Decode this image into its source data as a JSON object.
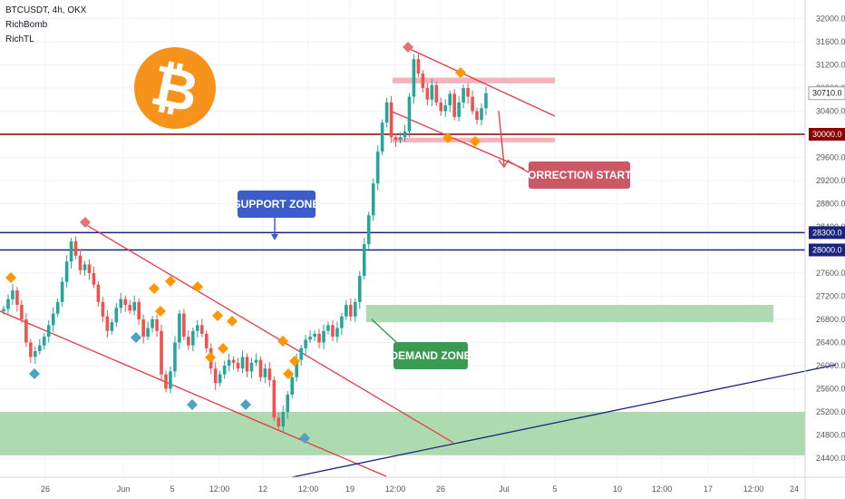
{
  "header": {
    "symbol": "BTCUSDT, 4h, OKX",
    "indicators": [
      "RichBomb",
      "RichTL"
    ]
  },
  "logo": {
    "glyph": "₿",
    "color": "#f7931a"
  },
  "colors": {
    "up": "#26a69a",
    "down": "#ef5350",
    "trend": "#e63946",
    "support": "#1a237e",
    "resistance": "#8b0000",
    "zone_green": "#a5d6a7",
    "zone_red": "#f4a6b0",
    "diamond_orange": "#ff9800",
    "diamond_blue": "#4aa3c5",
    "diamond_red": "#e57373"
  },
  "chart_data": {
    "type": "candlestick",
    "y_axis": {
      "range": [
        24200,
        32200
      ],
      "ticks": [
        24400,
        24800,
        25200,
        25600,
        26000,
        26400,
        26800,
        27200,
        27600,
        28000,
        28400,
        28800,
        29200,
        29600,
        30000,
        30400,
        30800,
        31200,
        31600,
        32000
      ],
      "tick_labels": [
        "24400.0",
        "24800.0",
        "25200.0",
        "25600.0",
        "26000.0",
        "26400.0",
        "26800.0",
        "27200.0",
        "27600.0",
        "28000.0",
        "28400.0",
        "28800.0",
        "29200.0",
        "29600.0",
        "30000.0",
        "30400.0",
        "30800.0",
        "31200.0",
        "31600.0",
        "32000.0"
      ]
    },
    "x_axis": {
      "tick_labels": [
        "26",
        "Jun",
        "5",
        "12:00",
        "12",
        "12:00",
        "19",
        "12:00",
        "26",
        "Jul",
        "5",
        "10",
        "12:00",
        "17",
        "12:00",
        "24"
      ]
    },
    "price_labels": [
      {
        "value": 30710,
        "text": "30710.0",
        "kind": "last"
      },
      {
        "value": 30000,
        "text": "30000.0",
        "kind": "resistance"
      },
      {
        "value": 28300,
        "text": "28300.0",
        "kind": "support"
      },
      {
        "value": 28000,
        "text": "28000.0",
        "kind": "support"
      }
    ],
    "horizontal_lines": [
      {
        "value": 30000,
        "role": "resistance"
      },
      {
        "value": 28300,
        "role": "support"
      },
      {
        "value": 28000,
        "role": "support"
      }
    ],
    "zones": [
      {
        "role": "demand-top",
        "from": 26750,
        "to": 27050
      },
      {
        "role": "demand-bottom",
        "from": 24450,
        "to": 25200
      },
      {
        "role": "channel-top",
        "from": 30880,
        "to": 30980
      },
      {
        "role": "channel-bottom",
        "from": 29860,
        "to": 29940
      }
    ],
    "annotations": {
      "support": "SUPPORT ZONE",
      "demand": "DEMAND ZONE",
      "correction": "CORRECTION STARTS"
    },
    "candles_path": [
      26980,
      27150,
      27300,
      27050,
      26800,
      26400,
      26150,
      26250,
      26350,
      26500,
      26700,
      26900,
      27100,
      27450,
      27800,
      28150,
      27900,
      27650,
      27750,
      27600,
      27400,
      27100,
      26850,
      26600,
      26750,
      27000,
      27150,
      27050,
      26950,
      27100,
      26800,
      26500,
      26650,
      26800,
      26600,
      25850,
      25600,
      25900,
      26400,
      26900,
      26500,
      26350,
      26600,
      26700,
      26550,
      26300,
      25950,
      25700,
      25850,
      26000,
      26100,
      26050,
      25950,
      26150,
      25900,
      26050,
      26100,
      25800,
      25950,
      25750,
      25100,
      24950,
      25200,
      25500,
      25800,
      26100,
      26300,
      26450,
      26500,
      26550,
      26400,
      26600,
      26700,
      26500,
      26650,
      26850,
      27050,
      26850,
      27100,
      27550,
      28100,
      28600,
      29150,
      29700,
      30200,
      30550,
      29950,
      29900,
      29950,
      30050,
      30650,
      31300,
      31050,
      30800,
      30600,
      30850,
      30550,
      30400,
      30500,
      30700,
      30300,
      30550,
      30800,
      30650,
      30400,
      30250,
      30450,
      30710
    ]
  }
}
